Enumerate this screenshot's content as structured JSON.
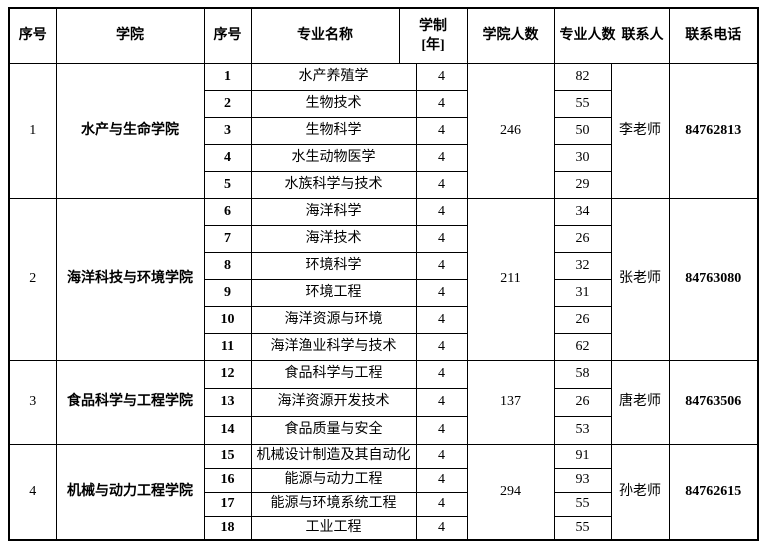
{
  "page": {
    "background_color": "#ffffff",
    "border_color": "#000000",
    "text_color": "#000000"
  },
  "table": {
    "headers": {
      "group_no": "序号",
      "college": "学院",
      "major_no": "序号",
      "major_name": "专业名称",
      "duration_line1": "学制",
      "duration_line2": "[年]",
      "college_count": "学院人数",
      "major_count": "专业人数",
      "contact": "联系人",
      "phone": "联系电话"
    },
    "groups": [
      {
        "no": "1",
        "college": "水产与生命学院",
        "college_count": "246",
        "contact": "李老师",
        "phone": "84762813",
        "majors": [
          {
            "no": "1",
            "name": "水产养殖学",
            "years": "4",
            "count": "82"
          },
          {
            "no": "2",
            "name": "生物技术",
            "years": "4",
            "count": "55"
          },
          {
            "no": "3",
            "name": "生物科学",
            "years": "4",
            "count": "50"
          },
          {
            "no": "4",
            "name": "水生动物医学",
            "years": "4",
            "count": "30"
          },
          {
            "no": "5",
            "name": "水族科学与技术",
            "years": "4",
            "count": "29"
          }
        ]
      },
      {
        "no": "2",
        "college": "海洋科技与环境学院",
        "college_count": "211",
        "contact": "张老师",
        "phone": "84763080",
        "majors": [
          {
            "no": "6",
            "name": "海洋科学",
            "years": "4",
            "count": "34"
          },
          {
            "no": "7",
            "name": "海洋技术",
            "years": "4",
            "count": "26"
          },
          {
            "no": "8",
            "name": "环境科学",
            "years": "4",
            "count": "32"
          },
          {
            "no": "9",
            "name": "环境工程",
            "years": "4",
            "count": "31"
          },
          {
            "no": "10",
            "name": "海洋资源与环境",
            "years": "4",
            "count": "26"
          },
          {
            "no": "11",
            "name": "海洋渔业科学与技术",
            "years": "4",
            "count": "62"
          }
        ]
      },
      {
        "no": "3",
        "college": "食品科学与工程学院",
        "college_count": "137",
        "contact": "唐老师",
        "phone": "84763506",
        "majors": [
          {
            "no": "12",
            "name": "食品科学与工程",
            "years": "4",
            "count": "58"
          },
          {
            "no": "13",
            "name": "海洋资源开发技术",
            "years": "4",
            "count": "26"
          },
          {
            "no": "14",
            "name": "食品质量与安全",
            "years": "4",
            "count": "53"
          }
        ]
      },
      {
        "no": "4",
        "college": "机械与动力工程学院",
        "college_count": "294",
        "contact": "孙老师",
        "phone": "84762615",
        "majors": [
          {
            "no": "15",
            "name": "机械设计制造及其自动化",
            "years": "4",
            "count": "91"
          },
          {
            "no": "16",
            "name": "能源与动力工程",
            "years": "4",
            "count": "93"
          },
          {
            "no": "17",
            "name": "能源与环境系统工程",
            "years": "4",
            "count": "55"
          },
          {
            "no": "18",
            "name": "工业工程",
            "years": "4",
            "count": "55"
          }
        ]
      }
    ]
  }
}
